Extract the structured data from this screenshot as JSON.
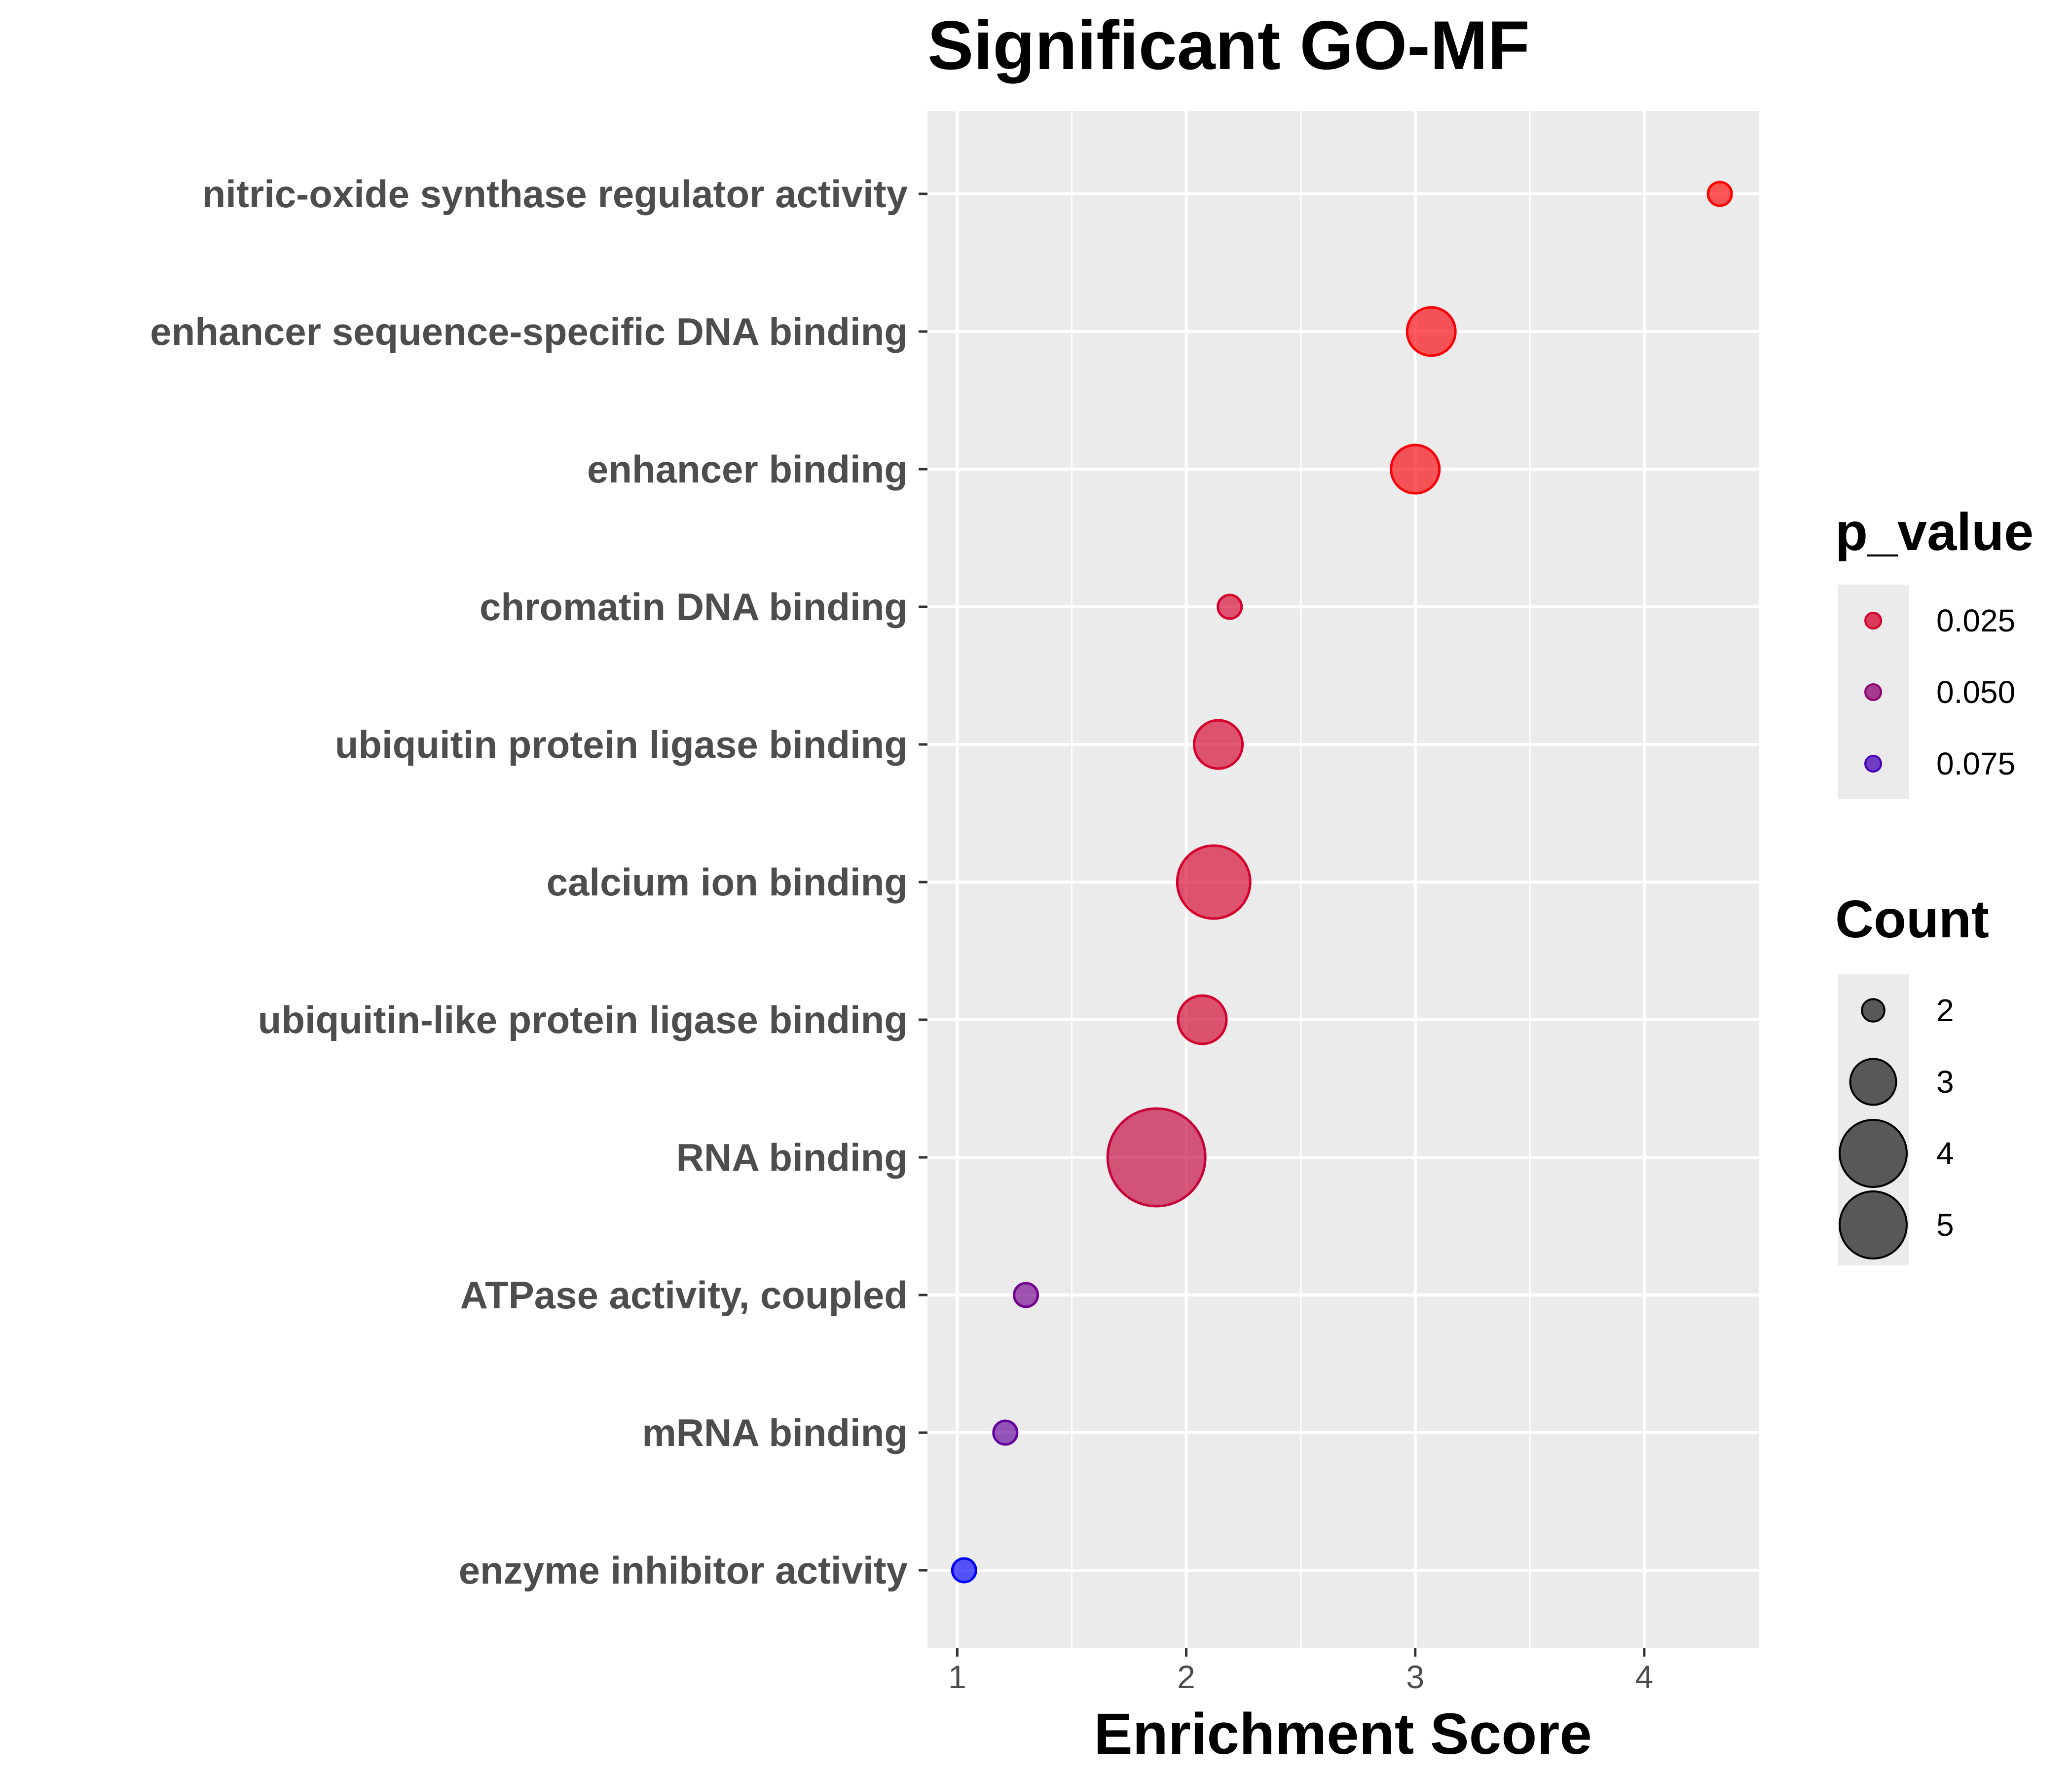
{
  "chart_data": {
    "type": "scatter",
    "title": "Significant GO-MF",
    "xlabel": "Enrichment Score",
    "ylabel": "",
    "xlim": [
      0.87,
      4.5
    ],
    "xticks": [
      1,
      2,
      3,
      4
    ],
    "grid": true,
    "legend_position": "right",
    "categories": [
      "nitric-oxide synthase regulator activity",
      "enhancer sequence-specific DNA binding",
      "enhancer binding",
      "chromatin DNA binding",
      "ubiquitin protein ligase binding",
      "calcium ion binding",
      "ubiquitin-like protein ligase binding",
      "RNA binding",
      "ATPase activity, coupled",
      "mRNA binding",
      "enzyme inhibitor activity"
    ],
    "points": [
      {
        "category": "nitric-oxide synthase regulator activity",
        "x": 4.33,
        "count": 2,
        "p_value": 0.01
      },
      {
        "category": "enhancer sequence-specific DNA binding",
        "x": 3.07,
        "count": 3,
        "p_value": 0.012
      },
      {
        "category": "enhancer binding",
        "x": 3.0,
        "count": 3,
        "p_value": 0.013
      },
      {
        "category": "chromatin DNA binding",
        "x": 2.19,
        "count": 2,
        "p_value": 0.025
      },
      {
        "category": "ubiquitin protein ligase binding",
        "x": 2.14,
        "count": 3,
        "p_value": 0.025
      },
      {
        "category": "calcium ion binding",
        "x": 2.12,
        "count": 4,
        "p_value": 0.025
      },
      {
        "category": "ubiquitin-like protein ligase binding",
        "x": 2.07,
        "count": 3,
        "p_value": 0.026
      },
      {
        "category": "RNA binding",
        "x": 1.87,
        "count": 5,
        "p_value": 0.03
      },
      {
        "category": "ATPase activity, coupled",
        "x": 1.3,
        "count": 2,
        "p_value": 0.06
      },
      {
        "category": "mRNA binding",
        "x": 1.21,
        "count": 2,
        "p_value": 0.065
      },
      {
        "category": "enzyme inhibitor activity",
        "x": 1.03,
        "count": 2,
        "p_value": 0.1
      }
    ],
    "legend_color": {
      "title": "p_value",
      "entries": [
        {
          "label": "0.025",
          "value": 0.025,
          "color": "#d81b60"
        },
        {
          "label": "0.050",
          "value": 0.05,
          "color": "#b21fbf"
        },
        {
          "label": "0.075",
          "value": 0.075,
          "color": "#7b1fd6"
        }
      ]
    },
    "legend_size": {
      "title": "Count",
      "entries": [
        {
          "label": "2",
          "value": 2
        },
        {
          "label": "3",
          "value": 3
        },
        {
          "label": "4",
          "value": 4
        },
        {
          "label": "5",
          "value": 5
        }
      ]
    },
    "colors": {
      "low_p": "#ff0000",
      "high_p": "#0000ff",
      "panel_background": "#ebebeb",
      "grid": "#ffffff",
      "size_legend_point": "#333333"
    }
  }
}
